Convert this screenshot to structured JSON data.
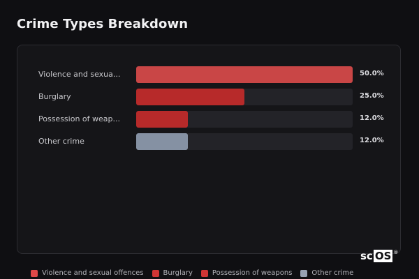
{
  "title": "Crime Types Breakdown",
  "chart_data": {
    "type": "bar",
    "orientation": "horizontal",
    "title": "Crime Types Breakdown",
    "categories": [
      "Violence and sexua...",
      "Burglary",
      "Possession of weap...",
      "Other crime"
    ],
    "values": [
      50.0,
      25.0,
      12.0,
      12.0
    ],
    "value_labels": [
      "50.0%",
      "25.0%",
      "12.0%",
      "12.0%"
    ],
    "colors": [
      "#c94646",
      "#b72a2a",
      "#b72a2a",
      "#8591a3"
    ],
    "xlim": [
      0,
      50
    ],
    "grid": false,
    "legend_position": "bottom",
    "legend": [
      {
        "label": "Violence and sexual offences",
        "color": "#e04848"
      },
      {
        "label": "Burglary",
        "color": "#d13434"
      },
      {
        "label": "Possession of weapons",
        "color": "#d13434"
      },
      {
        "label": "Other crime",
        "color": "#98a2b3"
      }
    ]
  },
  "brand": {
    "left": "sc",
    "boxed": "OS",
    "mark": "®"
  }
}
